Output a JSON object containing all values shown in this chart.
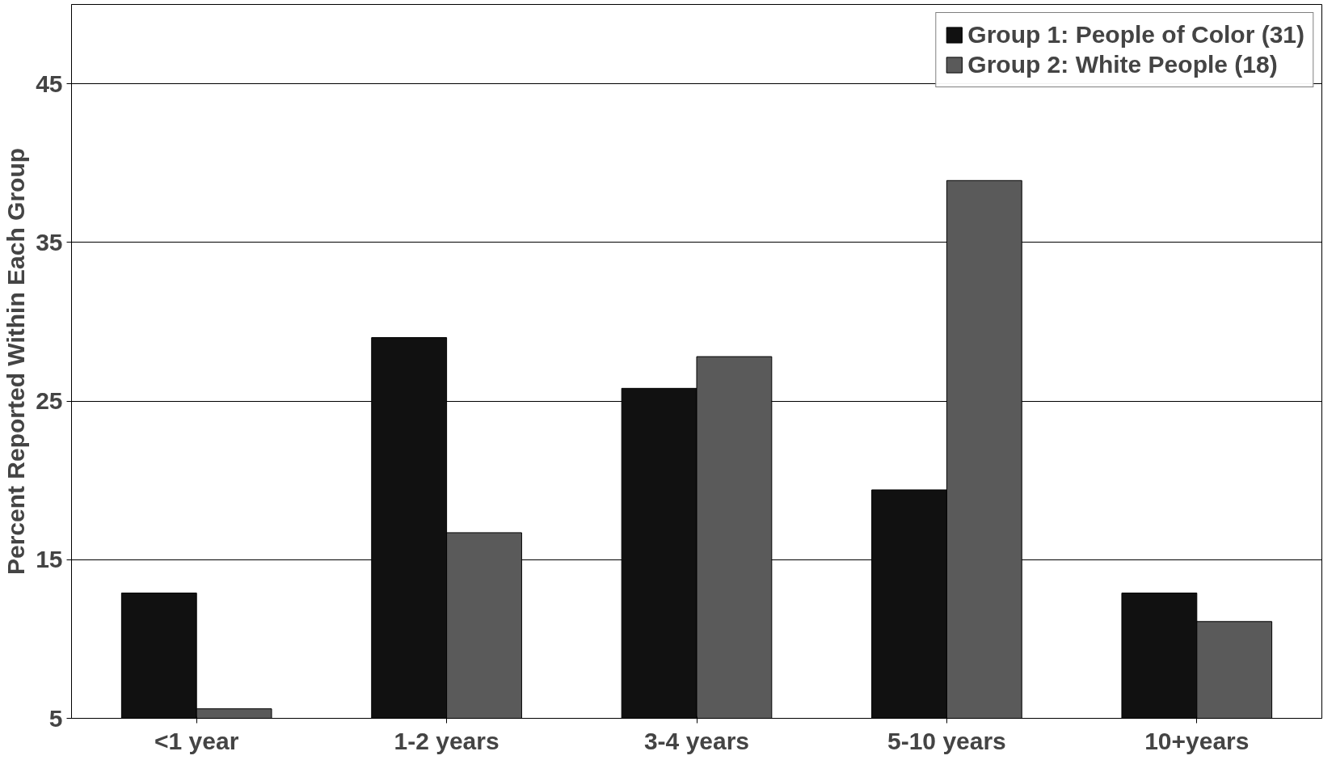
{
  "chart_data": {
    "type": "bar",
    "ylabel": "Percent Reported Within Each Group",
    "categories": [
      "<1 year",
      "1-2 years",
      "3-4 years",
      "5-10 years",
      "10+years"
    ],
    "series": [
      {
        "name": "Group 1: People of Color (31)",
        "color": "#111111",
        "values": [
          12.9,
          29.0,
          25.8,
          19.4,
          12.9
        ]
      },
      {
        "name": "Group 2: White People (18)",
        "color": "#5a5a5a",
        "values": [
          5.6,
          16.7,
          27.8,
          38.9,
          11.1
        ]
      }
    ],
    "ylim": [
      5,
      50
    ],
    "yticks": [
      5,
      15,
      25,
      35,
      45
    ],
    "grid": "y",
    "legend": "top right"
  }
}
